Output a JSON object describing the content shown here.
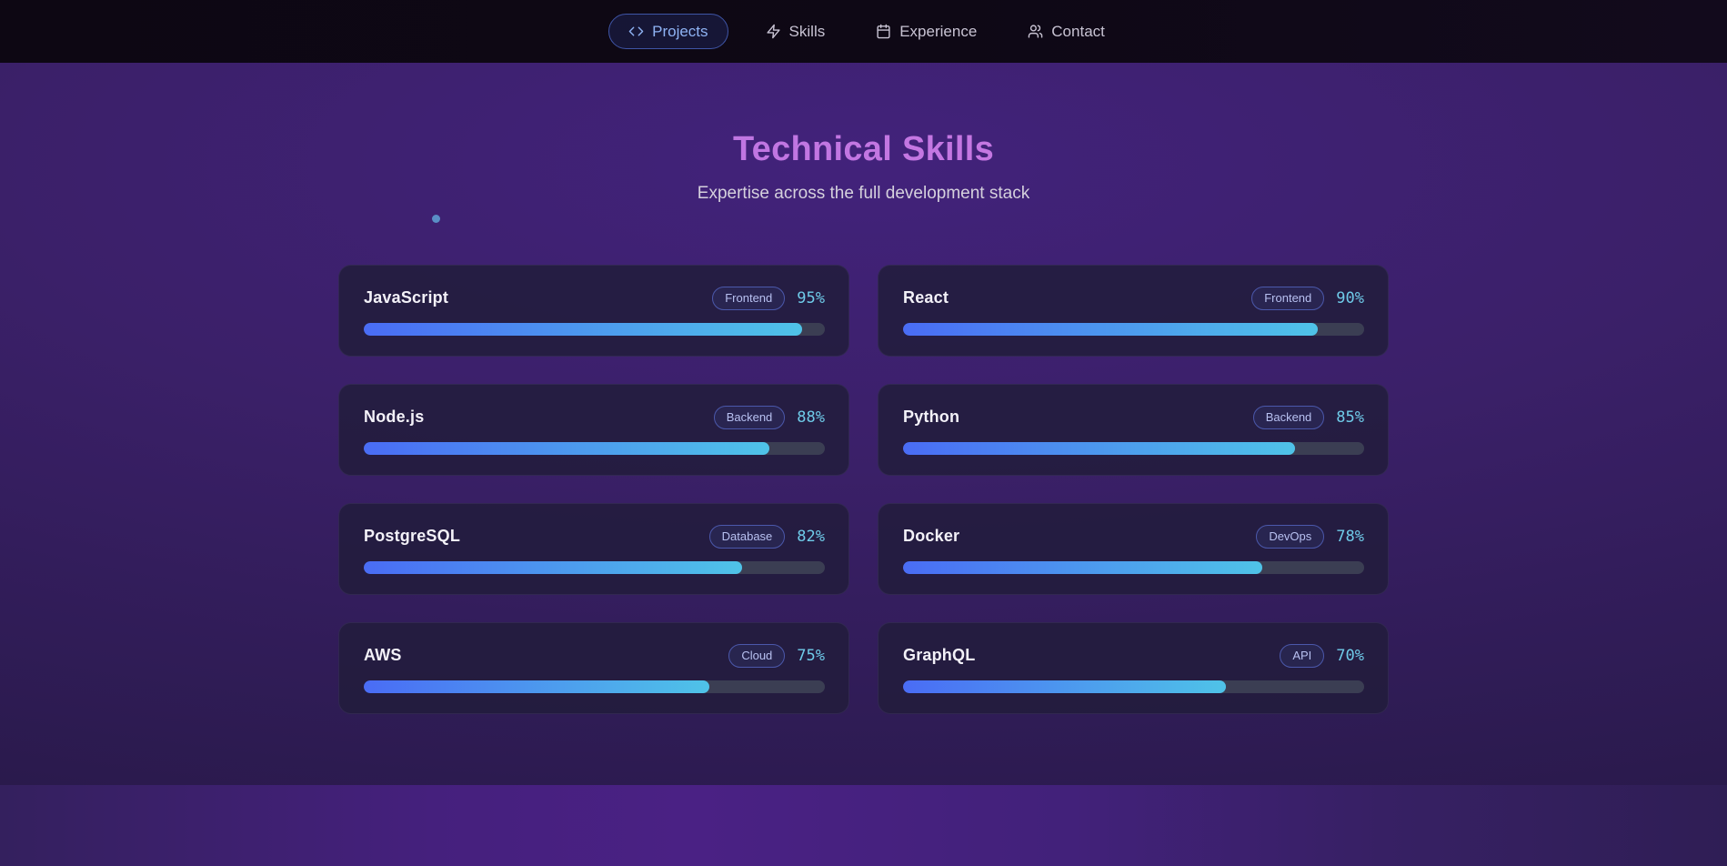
{
  "nav": {
    "items": [
      {
        "label": "Projects",
        "icon": "code-icon",
        "active": true
      },
      {
        "label": "Skills",
        "icon": "zap-icon",
        "active": false
      },
      {
        "label": "Experience",
        "icon": "calendar-icon",
        "active": false
      },
      {
        "label": "Contact",
        "icon": "users-icon",
        "active": false
      }
    ]
  },
  "section": {
    "title": "Technical Skills",
    "subtitle": "Expertise across the full development stack"
  },
  "skills": [
    {
      "name": "JavaScript",
      "category": "Frontend",
      "percent": 95
    },
    {
      "name": "React",
      "category": "Frontend",
      "percent": 90
    },
    {
      "name": "Node.js",
      "category": "Backend",
      "percent": 88
    },
    {
      "name": "Python",
      "category": "Backend",
      "percent": 85
    },
    {
      "name": "PostgreSQL",
      "category": "Database",
      "percent": 82
    },
    {
      "name": "Docker",
      "category": "DevOps",
      "percent": 78
    },
    {
      "name": "AWS",
      "category": "Cloud",
      "percent": 75
    },
    {
      "name": "GraphQL",
      "category": "API",
      "percent": 70
    }
  ],
  "colors": {
    "nav_background": "#0d0713",
    "nav_active_text": "#8fb3f4",
    "title_gradient_start": "#b173e2",
    "title_gradient_end": "#d47ae2",
    "bar_gradient_start": "#4a6cf5",
    "bar_gradient_end": "#4fc3e8",
    "bar_track": "#3b3e53",
    "percent_text": "#6fcbe9",
    "badge_border": "#4b58ab",
    "badge_text": "#b8c1f1",
    "particle_dot": "#5a8ec6"
  }
}
